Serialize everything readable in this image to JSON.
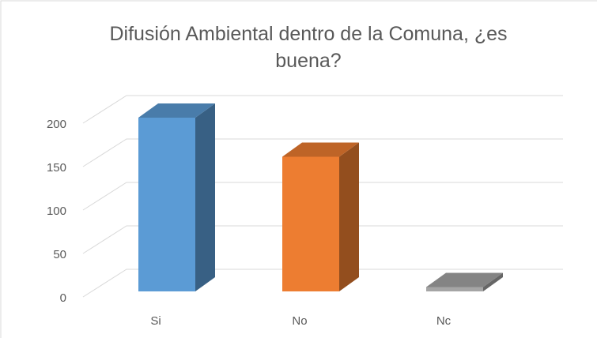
{
  "chart_data": {
    "type": "bar",
    "title": "Difusión Ambiental dentro de la Comuna, ¿es buena?",
    "categories": [
      "Si",
      "No",
      "Nc"
    ],
    "values": [
      200,
      155,
      5
    ],
    "colors": [
      "#5b9bd5",
      "#ed7d31",
      "#a5a5a5"
    ],
    "ylim": [
      0,
      200
    ],
    "yticks": [
      0,
      50,
      100,
      150,
      200
    ],
    "grid": true
  }
}
